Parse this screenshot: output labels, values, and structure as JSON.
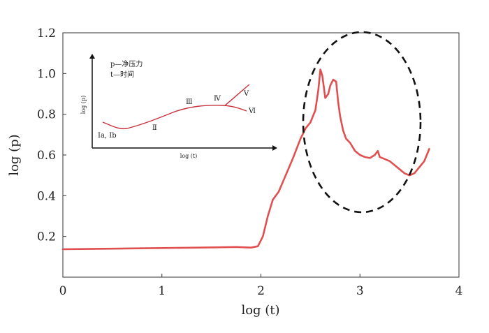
{
  "chart_data": {
    "type": "line",
    "xlabel": "log (t)",
    "ylabel": "log (p)",
    "xlim": [
      0,
      4
    ],
    "ylim": [
      0,
      1.2
    ],
    "x_ticks": [
      "0",
      "1",
      "2",
      "3",
      "4"
    ],
    "y_ticks": [
      "0.2",
      "0.4",
      "0.6",
      "0.8",
      "1.0",
      "1.2"
    ],
    "grid": false,
    "series": [
      {
        "color": "#e05050",
        "x": [
          0.0,
          0.5,
          1.0,
          1.5,
          1.75,
          1.9,
          1.97,
          2.02,
          2.07,
          2.12,
          2.18,
          2.25,
          2.32,
          2.4,
          2.45,
          2.5,
          2.55,
          2.58,
          2.6,
          2.62,
          2.65,
          2.68,
          2.7,
          2.73,
          2.76,
          2.78,
          2.8,
          2.83,
          2.86,
          2.9,
          2.95,
          3.0,
          3.05,
          3.1,
          3.15,
          3.18,
          3.2,
          3.25,
          3.3,
          3.35,
          3.4,
          3.45,
          3.5,
          3.55,
          3.6,
          3.65,
          3.7
        ],
        "y": [
          0.137,
          0.14,
          0.143,
          0.146,
          0.148,
          0.145,
          0.152,
          0.2,
          0.3,
          0.38,
          0.42,
          0.5,
          0.58,
          0.68,
          0.73,
          0.76,
          0.82,
          0.92,
          1.02,
          0.99,
          0.88,
          0.9,
          0.94,
          0.97,
          0.96,
          0.86,
          0.79,
          0.72,
          0.68,
          0.66,
          0.62,
          0.6,
          0.59,
          0.585,
          0.6,
          0.62,
          0.59,
          0.58,
          0.57,
          0.55,
          0.53,
          0.51,
          0.5,
          0.51,
          0.54,
          0.57,
          0.63
        ]
      }
    ],
    "annotations": {
      "highlight": "dashed-ellipse",
      "inset": {
        "legend": [
          "p—净压力",
          "t—时间"
        ],
        "xlabel": "log (t)",
        "ylabel": "log (p)",
        "stages": [
          "Ⅰa, Ⅰb",
          "Ⅱ",
          "Ⅲ",
          "Ⅳ",
          "Ⅴ",
          "Ⅵ"
        ]
      }
    }
  }
}
